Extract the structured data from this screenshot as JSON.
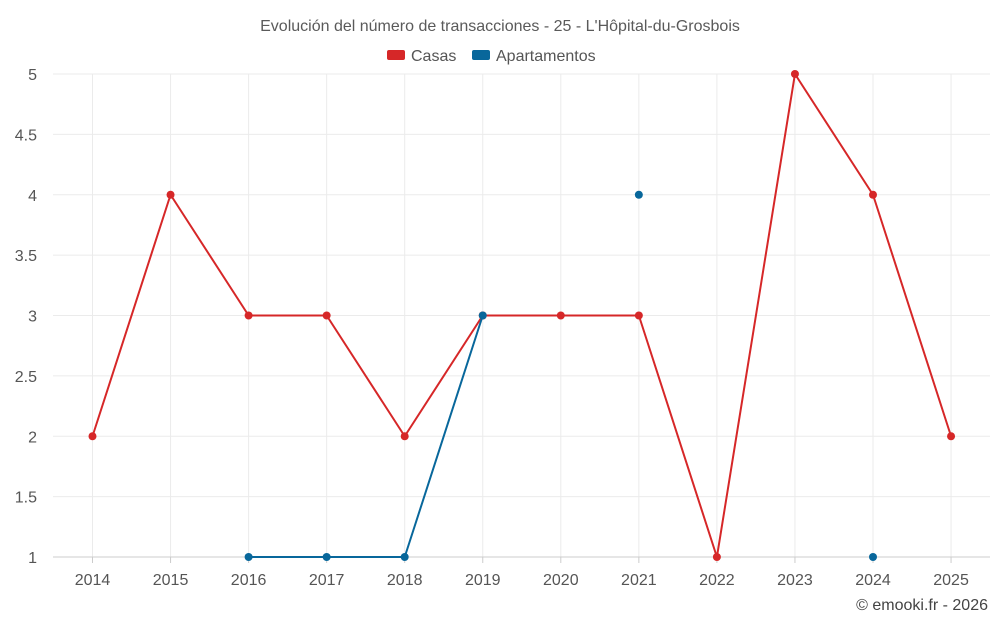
{
  "chart_data": {
    "type": "line",
    "title": "Evolución del número de transacciones - 25 - L'Hôpital-du-Grosbois",
    "xlabel": "",
    "ylabel": "",
    "categories": [
      "2014",
      "2015",
      "2016",
      "2017",
      "2018",
      "2019",
      "2020",
      "2021",
      "2022",
      "2023",
      "2024",
      "2025"
    ],
    "ylim": [
      1,
      5
    ],
    "yticks": [
      1,
      1.5,
      2,
      2.5,
      3,
      3.5,
      4,
      4.5,
      5
    ],
    "ytick_labels": [
      "1",
      "1.5",
      "2",
      "2.5",
      "3",
      "3.5",
      "4",
      "4.5",
      "5"
    ],
    "grid": true,
    "legend_position": "top-center",
    "series": [
      {
        "name": "Casas",
        "color": "#d62728",
        "values": [
          2,
          4,
          3,
          3,
          2,
          3,
          3,
          3,
          1,
          5,
          4,
          2
        ]
      },
      {
        "name": "Apartamentos",
        "color": "#08679b",
        "values": [
          null,
          null,
          1,
          1,
          1,
          3,
          null,
          4,
          null,
          null,
          1,
          null
        ]
      }
    ]
  },
  "credit": "© emooki.fr - 2026"
}
